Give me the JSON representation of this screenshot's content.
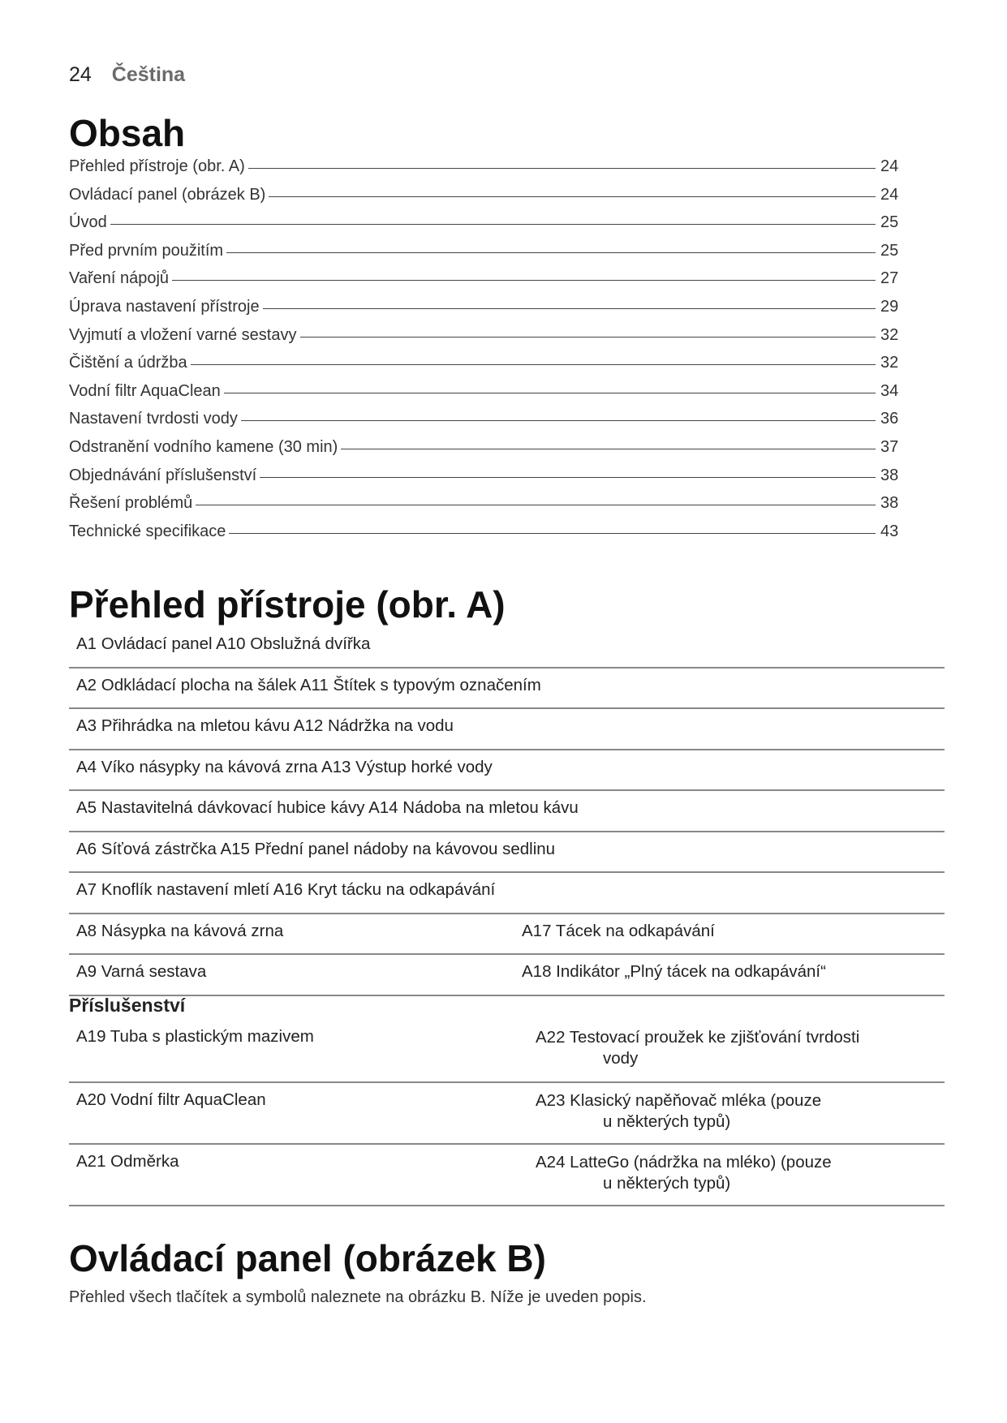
{
  "header": {
    "page_number": "24",
    "language": "Čeština"
  },
  "toc": {
    "title": "Obsah",
    "items": [
      {
        "label": "Přehled přístroje (obr. A)",
        "page": "24"
      },
      {
        "label": "Ovládací panel (obrázek B)",
        "page": "24"
      },
      {
        "label": "Úvod",
        "page": "25"
      },
      {
        "label": "Před prvním použitím",
        "page": "25"
      },
      {
        "label": "Vaření nápojů",
        "page": "27"
      },
      {
        "label": "Úprava nastavení přístroje",
        "page": "29"
      },
      {
        "label": "Vyjmutí a vložení varné sestavy",
        "page": "32"
      },
      {
        "label": "Čištění a údržba",
        "page": "32"
      },
      {
        "label": "Vodní filtr AquaClean",
        "page": "34"
      },
      {
        "label": "Nastavení tvrdosti vody",
        "page": "36"
      },
      {
        "label": "Odstranění vodního kamene (30 min)",
        "page": "37"
      },
      {
        "label": "Objednávání příslušenství",
        "page": "38"
      },
      {
        "label": "Řešení problémů",
        "page": "38"
      },
      {
        "label": "Technické specifikace",
        "page": "43"
      }
    ]
  },
  "overview": {
    "title": "Přehled přístroje (obr. A)",
    "rows": [
      {
        "c1": "A1 Ovládací panel A10 Obslužná dvířka",
        "c2": ""
      },
      {
        "c1": "A2 Odkládací plocha na šálek A11 Štítek s typovým označením",
        "c2": ""
      },
      {
        "c1": "A3 Přihrádka na mletou kávu A12 Nádržka na vodu",
        "c2": ""
      },
      {
        "c1": "A4 Víko násypky na kávová zrna A13 Výstup horké vody",
        "c2": ""
      },
      {
        "c1": "A5 Nastavitelná dávkovací hubice kávy A14 Nádoba na mletou kávu",
        "c2": ""
      },
      {
        "c1": "A6 Síťová zástrčka A15  Přední panel nádoby na kávovou sedlinu",
        "c2": ""
      },
      {
        "c1": "A7 Knoflík nastavení mletí A16 Kryt tácku na odkapávání",
        "c2": ""
      },
      {
        "c1": "A8 Násypka na kávová zrna",
        "c2": "A17 Tácek na odkapávání"
      },
      {
        "c1": "A9 Varná sestava",
        "c2": "A18 Indikátor „Plný tácek na odkapávání“"
      }
    ]
  },
  "accessories": {
    "title": "Příslušenství",
    "rows": [
      {
        "c1": "A19 Tuba s plastickým mazivem",
        "c2": "A22 Testovací proužek ke zjišťování tvrdosti",
        "c2_cont": "vody"
      },
      {
        "c1": "A20 Vodní filtr AquaClean",
        "c2": "A23 Klasický napěňovač mléka (pouze",
        "c2_cont": "u některých typů)"
      },
      {
        "c1": "A21 Odměrka",
        "c2": "A24 LatteGo (nádržka na mléko) (pouze",
        "c2_cont": "u některých typů)"
      }
    ]
  },
  "control_panel": {
    "title": "Ovládací panel (obrázek B)",
    "text": "Přehled všech tlačítek a symbolů naleznete na obrázku B. Níže je uveden popis."
  }
}
